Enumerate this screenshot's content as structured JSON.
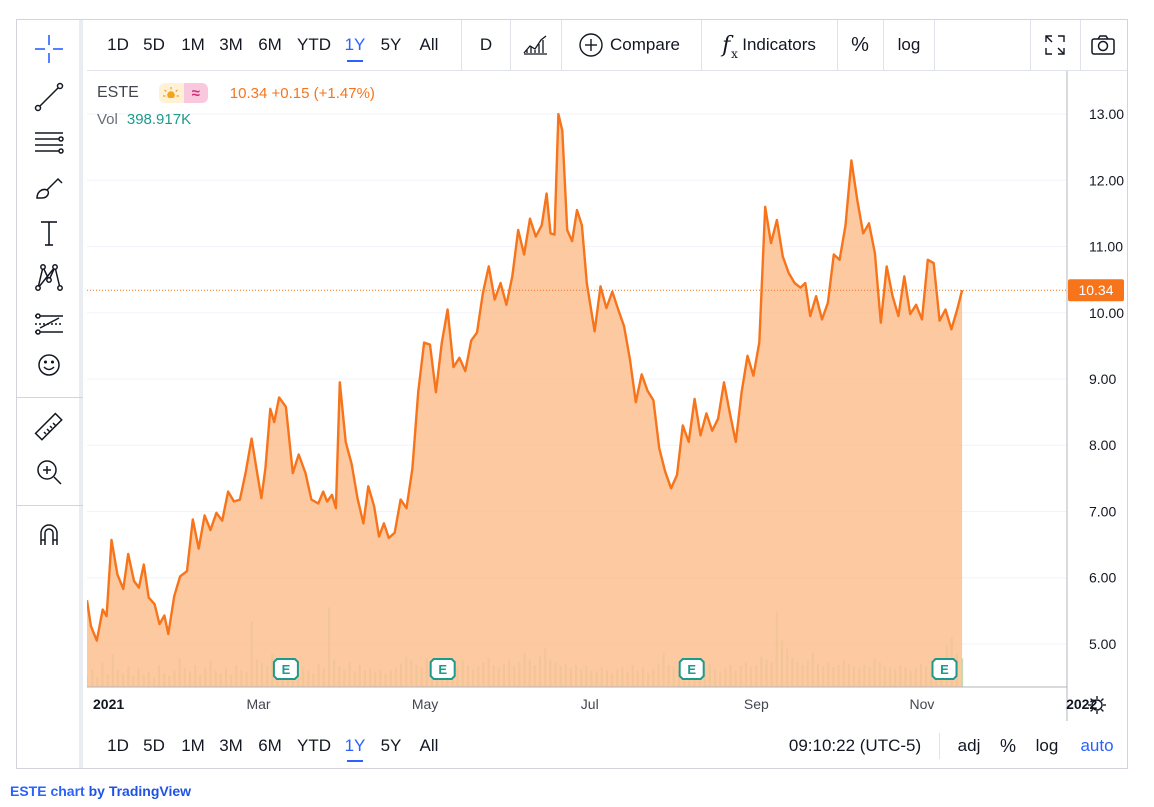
{
  "symbol": "ESTE",
  "quote": "10.34 +0.15 (+1.47%)",
  "volume": {
    "label": "Vol",
    "value": "398.917K"
  },
  "colors": {
    "line": "#f7741b",
    "area": "#fbbf8f",
    "accent": "#2962ff",
    "volume": "#a5d6a7"
  },
  "left_toolbar": {
    "icons": [
      "crosshair-icon",
      "trend-line-icon",
      "fib-lines-icon",
      "brush-icon",
      "text-icon",
      "pattern-icon",
      "forecast-icon",
      "emoji-icon",
      "ruler-icon",
      "zoom-icon",
      "magnet-icon"
    ]
  },
  "top_toolbar": {
    "ranges": [
      "1D",
      "5D",
      "1M",
      "3M",
      "6M",
      "YTD",
      "1Y",
      "5Y",
      "All"
    ],
    "active_range": "1Y",
    "interval": "D",
    "compare": "Compare",
    "indicators": "Indicators",
    "percent": "%",
    "log": "log"
  },
  "bottom_toolbar": {
    "ranges": [
      "1D",
      "5D",
      "1M",
      "3M",
      "6M",
      "YTD",
      "1Y",
      "5Y",
      "All"
    ],
    "time": "09:10:22 (UTC-5)",
    "adj": "adj",
    "percent": "%",
    "log": "log",
    "auto": "auto"
  },
  "attribution": {
    "symbol": "ESTE chart",
    "rest": " by TradingView"
  },
  "chart_data": {
    "type": "area",
    "ylim": [
      4.35,
      13.65
    ],
    "y_ticks": [
      "5.00",
      "6.00",
      "7.00",
      "8.00",
      "9.00",
      "10.00",
      "11.00",
      "12.00",
      "13.00"
    ],
    "x_labels": [
      {
        "label": "2021",
        "t": 0.012
      },
      {
        "label": "Mar",
        "t": 0.175
      },
      {
        "label": "May",
        "t": 0.345
      },
      {
        "label": "Jul",
        "t": 0.513
      },
      {
        "label": "Sep",
        "t": 0.683
      },
      {
        "label": "Nov",
        "t": 0.852
      },
      {
        "label": "2022",
        "t": 1.015
      }
    ],
    "last_price": "10.34",
    "earnings_label": "E",
    "earnings_t": [
      0.203,
      0.363,
      0.617,
      0.875
    ],
    "series": [
      {
        "t": 0.0,
        "y": 5.66
      },
      {
        "t": 0.004,
        "y": 5.27
      },
      {
        "t": 0.01,
        "y": 5.05
      },
      {
        "t": 0.016,
        "y": 5.52
      },
      {
        "t": 0.02,
        "y": 5.42
      },
      {
        "t": 0.025,
        "y": 6.57
      },
      {
        "t": 0.031,
        "y": 6.05
      },
      {
        "t": 0.037,
        "y": 5.83
      },
      {
        "t": 0.042,
        "y": 6.36
      },
      {
        "t": 0.048,
        "y": 5.95
      },
      {
        "t": 0.053,
        "y": 5.85
      },
      {
        "t": 0.058,
        "y": 6.2
      },
      {
        "t": 0.063,
        "y": 5.7
      },
      {
        "t": 0.069,
        "y": 5.6
      },
      {
        "t": 0.074,
        "y": 5.3
      },
      {
        "t": 0.079,
        "y": 5.43
      },
      {
        "t": 0.083,
        "y": 5.15
      },
      {
        "t": 0.089,
        "y": 5.72
      },
      {
        "t": 0.095,
        "y": 6.02
      },
      {
        "t": 0.102,
        "y": 6.1
      },
      {
        "t": 0.108,
        "y": 6.88
      },
      {
        "t": 0.114,
        "y": 6.44
      },
      {
        "t": 0.12,
        "y": 6.94
      },
      {
        "t": 0.126,
        "y": 6.72
      },
      {
        "t": 0.132,
        "y": 6.98
      },
      {
        "t": 0.138,
        "y": 6.86
      },
      {
        "t": 0.144,
        "y": 7.3
      },
      {
        "t": 0.15,
        "y": 7.15
      },
      {
        "t": 0.156,
        "y": 7.18
      },
      {
        "t": 0.162,
        "y": 7.6
      },
      {
        "t": 0.168,
        "y": 8.1
      },
      {
        "t": 0.174,
        "y": 7.55
      },
      {
        "t": 0.178,
        "y": 7.2
      },
      {
        "t": 0.182,
        "y": 7.65
      },
      {
        "t": 0.187,
        "y": 8.55
      },
      {
        "t": 0.191,
        "y": 8.35
      },
      {
        "t": 0.196,
        "y": 8.72
      },
      {
        "t": 0.203,
        "y": 8.58
      },
      {
        "t": 0.21,
        "y": 7.58
      },
      {
        "t": 0.216,
        "y": 7.86
      },
      {
        "t": 0.223,
        "y": 7.58
      },
      {
        "t": 0.229,
        "y": 7.18
      },
      {
        "t": 0.236,
        "y": 7.12
      },
      {
        "t": 0.241,
        "y": 7.3
      },
      {
        "t": 0.245,
        "y": 7.15
      },
      {
        "t": 0.25,
        "y": 7.25
      },
      {
        "t": 0.254,
        "y": 7.05
      },
      {
        "t": 0.258,
        "y": 8.95
      },
      {
        "t": 0.264,
        "y": 8.05
      },
      {
        "t": 0.27,
        "y": 7.72
      },
      {
        "t": 0.276,
        "y": 7.2
      },
      {
        "t": 0.282,
        "y": 6.82
      },
      {
        "t": 0.287,
        "y": 7.38
      },
      {
        "t": 0.293,
        "y": 7.08
      },
      {
        "t": 0.298,
        "y": 6.62
      },
      {
        "t": 0.303,
        "y": 6.82
      },
      {
        "t": 0.308,
        "y": 6.6
      },
      {
        "t": 0.314,
        "y": 6.68
      },
      {
        "t": 0.32,
        "y": 7.18
      },
      {
        "t": 0.326,
        "y": 7.05
      },
      {
        "t": 0.332,
        "y": 7.65
      },
      {
        "t": 0.338,
        "y": 8.8
      },
      {
        "t": 0.344,
        "y": 9.55
      },
      {
        "t": 0.35,
        "y": 9.52
      },
      {
        "t": 0.356,
        "y": 8.8
      },
      {
        "t": 0.362,
        "y": 9.55
      },
      {
        "t": 0.368,
        "y": 10.05
      },
      {
        "t": 0.374,
        "y": 9.18
      },
      {
        "t": 0.38,
        "y": 9.32
      },
      {
        "t": 0.386,
        "y": 9.12
      },
      {
        "t": 0.392,
        "y": 9.58
      },
      {
        "t": 0.398,
        "y": 9.7
      },
      {
        "t": 0.404,
        "y": 10.3
      },
      {
        "t": 0.41,
        "y": 10.7
      },
      {
        "t": 0.416,
        "y": 10.2
      },
      {
        "t": 0.422,
        "y": 10.45
      },
      {
        "t": 0.428,
        "y": 10.12
      },
      {
        "t": 0.434,
        "y": 10.55
      },
      {
        "t": 0.44,
        "y": 11.25
      },
      {
        "t": 0.446,
        "y": 10.88
      },
      {
        "t": 0.452,
        "y": 11.42
      },
      {
        "t": 0.458,
        "y": 11.15
      },
      {
        "t": 0.464,
        "y": 11.32
      },
      {
        "t": 0.469,
        "y": 11.8
      },
      {
        "t": 0.473,
        "y": 11.2
      },
      {
        "t": 0.477,
        "y": 11.18
      },
      {
        "t": 0.481,
        "y": 13.0
      },
      {
        "t": 0.485,
        "y": 12.75
      },
      {
        "t": 0.49,
        "y": 11.25
      },
      {
        "t": 0.495,
        "y": 11.08
      },
      {
        "t": 0.5,
        "y": 11.55
      },
      {
        "t": 0.505,
        "y": 11.32
      },
      {
        "t": 0.51,
        "y": 10.45
      },
      {
        "t": 0.518,
        "y": 9.72
      },
      {
        "t": 0.524,
        "y": 10.4
      },
      {
        "t": 0.53,
        "y": 10.07
      },
      {
        "t": 0.536,
        "y": 10.32
      },
      {
        "t": 0.542,
        "y": 10.05
      },
      {
        "t": 0.548,
        "y": 9.8
      },
      {
        "t": 0.554,
        "y": 9.3
      },
      {
        "t": 0.56,
        "y": 8.65
      },
      {
        "t": 0.566,
        "y": 9.07
      },
      {
        "t": 0.572,
        "y": 8.82
      },
      {
        "t": 0.578,
        "y": 8.68
      },
      {
        "t": 0.584,
        "y": 7.95
      },
      {
        "t": 0.59,
        "y": 7.6
      },
      {
        "t": 0.596,
        "y": 7.35
      },
      {
        "t": 0.602,
        "y": 7.55
      },
      {
        "t": 0.608,
        "y": 8.3
      },
      {
        "t": 0.614,
        "y": 8.05
      },
      {
        "t": 0.62,
        "y": 8.7
      },
      {
        "t": 0.626,
        "y": 8.15
      },
      {
        "t": 0.632,
        "y": 8.48
      },
      {
        "t": 0.638,
        "y": 8.22
      },
      {
        "t": 0.644,
        "y": 8.4
      },
      {
        "t": 0.65,
        "y": 8.95
      },
      {
        "t": 0.656,
        "y": 8.48
      },
      {
        "t": 0.662,
        "y": 8.05
      },
      {
        "t": 0.668,
        "y": 8.8
      },
      {
        "t": 0.674,
        "y": 9.35
      },
      {
        "t": 0.68,
        "y": 9.05
      },
      {
        "t": 0.686,
        "y": 9.55
      },
      {
        "t": 0.692,
        "y": 11.6
      },
      {
        "t": 0.698,
        "y": 11.05
      },
      {
        "t": 0.704,
        "y": 11.4
      },
      {
        "t": 0.71,
        "y": 10.85
      },
      {
        "t": 0.716,
        "y": 10.6
      },
      {
        "t": 0.722,
        "y": 10.45
      },
      {
        "t": 0.728,
        "y": 10.38
      },
      {
        "t": 0.733,
        "y": 10.45
      },
      {
        "t": 0.738,
        "y": 9.95
      },
      {
        "t": 0.744,
        "y": 10.25
      },
      {
        "t": 0.75,
        "y": 9.9
      },
      {
        "t": 0.756,
        "y": 10.15
      },
      {
        "t": 0.762,
        "y": 10.88
      },
      {
        "t": 0.768,
        "y": 10.8
      },
      {
        "t": 0.774,
        "y": 11.32
      },
      {
        "t": 0.78,
        "y": 12.3
      },
      {
        "t": 0.786,
        "y": 11.7
      },
      {
        "t": 0.792,
        "y": 11.2
      },
      {
        "t": 0.798,
        "y": 11.35
      },
      {
        "t": 0.804,
        "y": 10.9
      },
      {
        "t": 0.81,
        "y": 9.85
      },
      {
        "t": 0.816,
        "y": 10.7
      },
      {
        "t": 0.822,
        "y": 10.25
      },
      {
        "t": 0.828,
        "y": 9.95
      },
      {
        "t": 0.834,
        "y": 10.55
      },
      {
        "t": 0.84,
        "y": 9.98
      },
      {
        "t": 0.846,
        "y": 10.12
      },
      {
        "t": 0.852,
        "y": 9.9
      },
      {
        "t": 0.858,
        "y": 10.8
      },
      {
        "t": 0.864,
        "y": 10.75
      },
      {
        "t": 0.87,
        "y": 9.88
      },
      {
        "t": 0.876,
        "y": 10.05
      },
      {
        "t": 0.882,
        "y": 9.75
      },
      {
        "t": 0.888,
        "y": 10.05
      },
      {
        "t": 0.893,
        "y": 10.34
      }
    ],
    "volume": [
      0.2,
      0.32,
      0.18,
      0.45,
      0.22,
      0.6,
      0.3,
      0.25,
      0.38,
      0.2,
      0.35,
      0.22,
      0.28,
      0.18,
      0.4,
      0.25,
      0.2,
      0.3,
      0.52,
      0.35,
      0.28,
      0.4,
      0.22,
      0.35,
      0.48,
      0.3,
      0.25,
      0.36,
      0.22,
      0.4,
      0.3,
      0.28,
      1.2,
      0.5,
      0.45,
      0.38,
      0.6,
      0.42,
      0.35,
      0.3,
      0.28,
      0.48,
      0.36,
      0.3,
      0.25,
      0.42,
      0.35,
      1.45,
      0.5,
      0.38,
      0.32,
      0.45,
      0.28,
      0.4,
      0.3,
      0.35,
      0.28,
      0.32,
      0.25,
      0.3,
      0.36,
      0.42,
      0.55,
      0.48,
      0.4,
      0.35,
      0.52,
      0.45,
      0.38,
      0.3,
      0.35,
      0.42,
      0.36,
      0.48,
      0.4,
      0.32,
      0.38,
      0.45,
      0.52,
      0.4,
      0.36,
      0.42,
      0.5,
      0.38,
      0.45,
      0.62,
      0.48,
      0.4,
      0.55,
      0.7,
      0.5,
      0.45,
      0.38,
      0.42,
      0.35,
      0.4,
      0.32,
      0.38,
      0.3,
      0.28,
      0.36,
      0.3,
      0.25,
      0.32,
      0.35,
      0.28,
      0.4,
      0.3,
      0.36,
      0.25,
      0.32,
      0.42,
      0.62,
      0.4,
      0.35,
      0.3,
      0.28,
      0.45,
      0.36,
      0.3,
      0.35,
      0.42,
      0.32,
      0.28,
      0.35,
      0.4,
      0.3,
      0.38,
      0.45,
      0.36,
      0.4,
      0.55,
      0.5,
      0.45,
      1.35,
      0.85,
      0.7,
      0.52,
      0.45,
      0.4,
      0.48,
      0.62,
      0.42,
      0.38,
      0.45,
      0.36,
      0.4,
      0.5,
      0.42,
      0.38,
      0.35,
      0.4,
      0.36,
      0.52,
      0.45,
      0.38,
      0.35,
      0.32,
      0.4,
      0.36,
      0.3,
      0.35,
      0.42,
      0.38,
      0.3,
      0.36,
      0.42,
      0.75,
      0.9,
      0.6,
      0.52
    ]
  }
}
